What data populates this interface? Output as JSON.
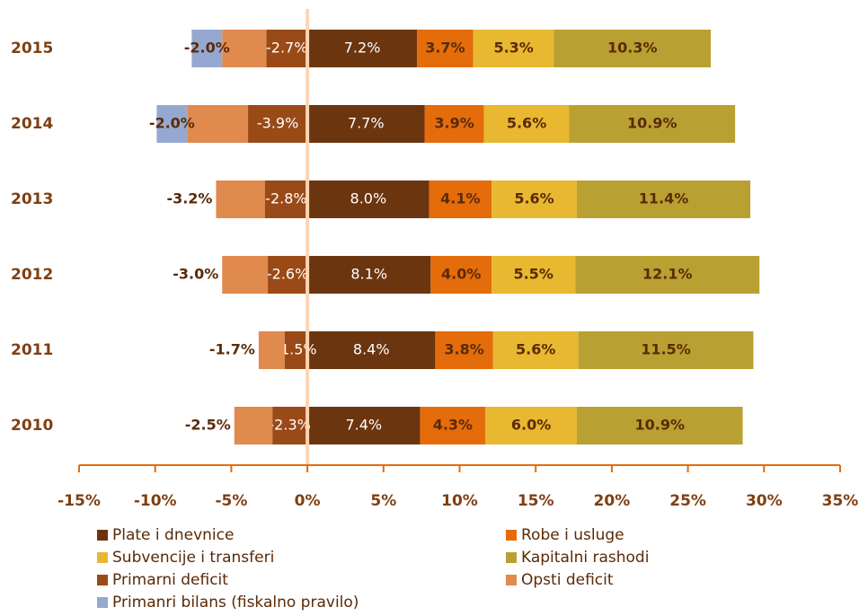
{
  "chart_data": {
    "type": "bar",
    "orientation": "horizontal",
    "stacked": true,
    "categories": [
      "2015",
      "2014",
      "2013",
      "2012",
      "2011",
      "2010"
    ],
    "series": [
      {
        "name": "Plate i dnevnice",
        "color": "#6b3510",
        "label_color": "#ffffff",
        "values": [
          7.2,
          7.7,
          8.0,
          8.1,
          8.4,
          7.4
        ],
        "value_labels": [
          "7.2%",
          "7.7%",
          "8.0%",
          "8.1%",
          "8.4%",
          "7.4%"
        ]
      },
      {
        "name": "Robe i usluge",
        "color": "#e46c0a",
        "label_color": "#5a2a08",
        "values": [
          3.7,
          3.9,
          4.1,
          4.0,
          3.8,
          4.3
        ],
        "value_labels": [
          "3.7%",
          "3.9%",
          "4.1%",
          "4.0%",
          "3.8%",
          "4.3%"
        ]
      },
      {
        "name": "Subvencije i transferi",
        "color": "#e8b830",
        "label_color": "#5a2a08",
        "values": [
          5.3,
          5.6,
          5.6,
          5.5,
          5.6,
          6.0
        ],
        "value_labels": [
          "5.3%",
          "5.6%",
          "5.6%",
          "5.5%",
          "5.6%",
          "6.0%"
        ]
      },
      {
        "name": "Kapitalni rashodi",
        "color": "#b9a032",
        "label_color": "#5a2a08",
        "values": [
          10.3,
          10.9,
          11.4,
          12.1,
          11.5,
          10.9
        ],
        "value_labels": [
          "10.3%",
          "10.9%",
          "11.4%",
          "12.1%",
          "11.5%",
          "10.9%"
        ]
      },
      {
        "name": "Primarni deficit",
        "color": "#9a4a17",
        "label_color": "#ffffff",
        "values": [
          -2.7,
          -3.9,
          -2.8,
          -2.6,
          -1.5,
          -2.3
        ],
        "value_labels": [
          "-2.7%",
          "-3.9%",
          "-2.8%",
          "-2.6%",
          "-1.5%",
          "-2.3%"
        ]
      },
      {
        "name": "Opsti deficit",
        "color": "#e08a4e",
        "label_color": "#5a2a08",
        "label_outside": true,
        "values": [
          -2.9,
          -4.0,
          -3.2,
          -3.0,
          -1.7,
          -2.5
        ],
        "value_labels": [
          null,
          null,
          "-3.2%",
          "-3.0%",
          "-1.7%",
          "-2.5%"
        ]
      },
      {
        "name": "Primanri bilans (fiskalno pravilo)",
        "color": "#95a9d0",
        "label_color": "#5a2a08",
        "values": [
          -2.0,
          -2.0,
          null,
          null,
          null,
          null
        ],
        "value_labels": [
          "-2.0%",
          "-2.0%",
          null,
          null,
          null,
          null
        ]
      }
    ],
    "xlim": [
      -15,
      35
    ],
    "xticks": [
      {
        "value": -15,
        "label": "-15%"
      },
      {
        "value": -10,
        "label": "-10%"
      },
      {
        "value": -5,
        "label": "-5%"
      },
      {
        "value": 0,
        "label": "0%"
      },
      {
        "value": 5,
        "label": "5%"
      },
      {
        "value": 10,
        "label": "10%"
      },
      {
        "value": 15,
        "label": "15%"
      },
      {
        "value": 20,
        "label": "20%"
      },
      {
        "value": 25,
        "label": "25%"
      },
      {
        "value": 30,
        "label": "30%"
      },
      {
        "value": 35,
        "label": "35%"
      }
    ]
  }
}
